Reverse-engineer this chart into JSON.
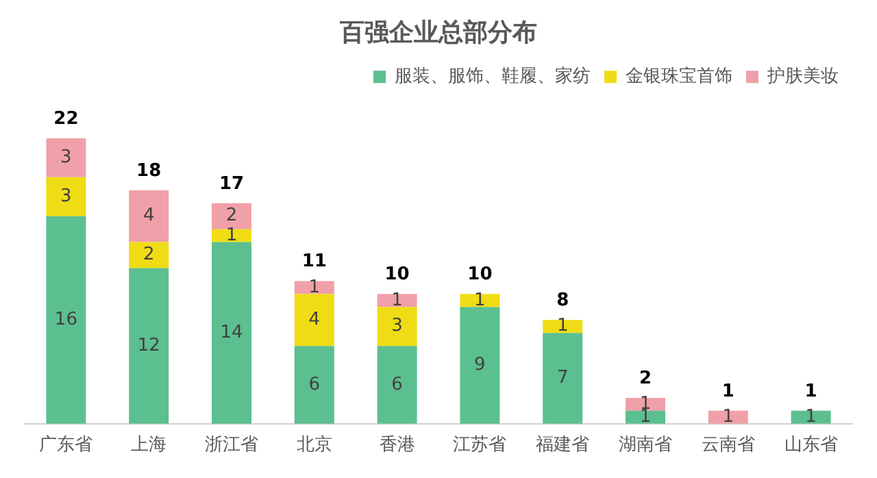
{
  "chart_data": {
    "type": "bar",
    "title": "百强企业总部分布",
    "categories": [
      "广东省",
      "上海",
      "浙江省",
      "北京",
      "香港",
      "江苏省",
      "福建省",
      "湖南省",
      "云南省",
      "山东省"
    ],
    "stacked": true,
    "data_labels": true,
    "legend": "top right",
    "grid": false,
    "series": [
      {
        "name": "服装、服饰、鞋履、家纺",
        "color": "#5cbf8f",
        "values": [
          16,
          12,
          14,
          6,
          6,
          9,
          7,
          1,
          null,
          1
        ]
      },
      {
        "name": "金银珠宝首饰",
        "color": "#f0dc14",
        "values": [
          3,
          2,
          1,
          4,
          3,
          1,
          1,
          null,
          null,
          null
        ]
      },
      {
        "name": "护肤美妆",
        "color": "#f0a0a8",
        "values": [
          3,
          4,
          2,
          1,
          1,
          null,
          null,
          1,
          1,
          null
        ]
      }
    ],
    "totals": [
      "22",
      "18",
      "17",
      "11",
      "10",
      "10",
      "8",
      "2",
      "1",
      "1"
    ]
  }
}
